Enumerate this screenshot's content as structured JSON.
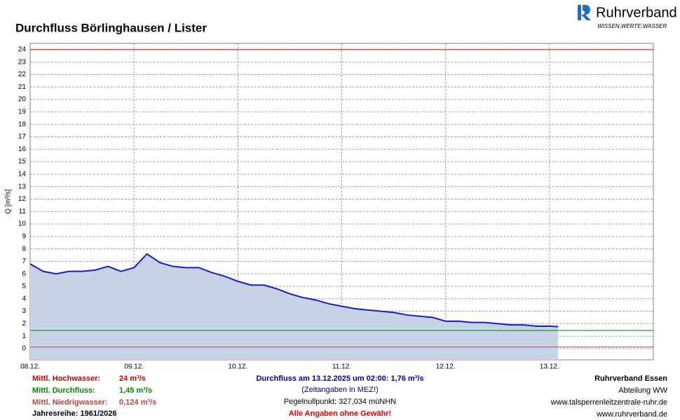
{
  "chart_data": {
    "type": "line",
    "title": "Durchfluss Börlinghausen / Lister",
    "logo_name": "Ruhrverband",
    "logo_tagline": "WISSEN,WERTE,WASSER",
    "ylabel": "Q [m³/s]",
    "x": [
      0,
      3,
      6,
      9,
      12,
      15,
      18,
      21,
      24,
      27,
      30,
      33,
      36,
      39,
      42,
      45,
      48,
      51,
      54,
      57,
      60,
      63,
      66,
      69,
      72,
      75,
      78,
      81,
      84,
      87,
      90,
      93,
      96,
      99,
      102,
      105,
      108,
      111,
      114,
      117,
      120,
      122
    ],
    "values": [
      6.8,
      6.2,
      6.0,
      6.2,
      6.2,
      6.3,
      6.6,
      6.2,
      6.5,
      7.6,
      6.9,
      6.6,
      6.5,
      6.5,
      6.1,
      5.8,
      5.4,
      5.1,
      5.1,
      4.8,
      4.4,
      4.1,
      3.9,
      3.6,
      3.4,
      3.2,
      3.1,
      3.0,
      2.9,
      2.7,
      2.6,
      2.5,
      2.2,
      2.2,
      2.1,
      2.1,
      2.0,
      1.9,
      1.9,
      1.8,
      1.8,
      1.76
    ],
    "color": "#1a1acc",
    "fill_color": "#c6d2e6",
    "xlim": [
      0,
      144
    ],
    "xticks": [
      {
        "value": 0,
        "label": "08.12."
      },
      {
        "value": 24,
        "label": "09.12."
      },
      {
        "value": 48,
        "label": "10.12."
      },
      {
        "value": 72,
        "label": "11.12."
      },
      {
        "value": 96,
        "label": "12.12."
      },
      {
        "value": 120,
        "label": "13.12."
      }
    ],
    "ylim": [
      -0.9,
      24.5
    ],
    "yticks": [
      0,
      1,
      2,
      3,
      4,
      5,
      6,
      7,
      8,
      9,
      10,
      11,
      12,
      13,
      14,
      15,
      16,
      17,
      18,
      19,
      20,
      21,
      22,
      23,
      24
    ],
    "grid": true,
    "reference_lines": [
      {
        "name": "Mittl. Hochwasser:",
        "value": 24,
        "value_label": "24 m³/s",
        "color": "#cc0000"
      },
      {
        "name": "Mittl. Durchfluss:",
        "value": 1.45,
        "value_label": "1,45 m³/s",
        "color": "#008800"
      },
      {
        "name": "Mittl. Niedrigwasser:",
        "value": 0.124,
        "value_label": "0,124 m³/s",
        "color": "#b04848"
      }
    ],
    "series_years": "Jahresreihe: 1961/2026",
    "current_value": "Durchfluss am 13.12.2025 um 02:00: 1,76 m³/s",
    "time_note": "(Zeitangaben in MEZ!)",
    "gauge_zero": "Pegelnullpunkt:  327,034 müNHN",
    "disclaimer": "Alle Angaben ohne Gewähr!",
    "org_lines": [
      "Ruhrverband Essen",
      "Abteilung WW",
      "www.talsperrenleitzentrale-ruhr.de",
      "www.ruhrverband.de"
    ]
  }
}
